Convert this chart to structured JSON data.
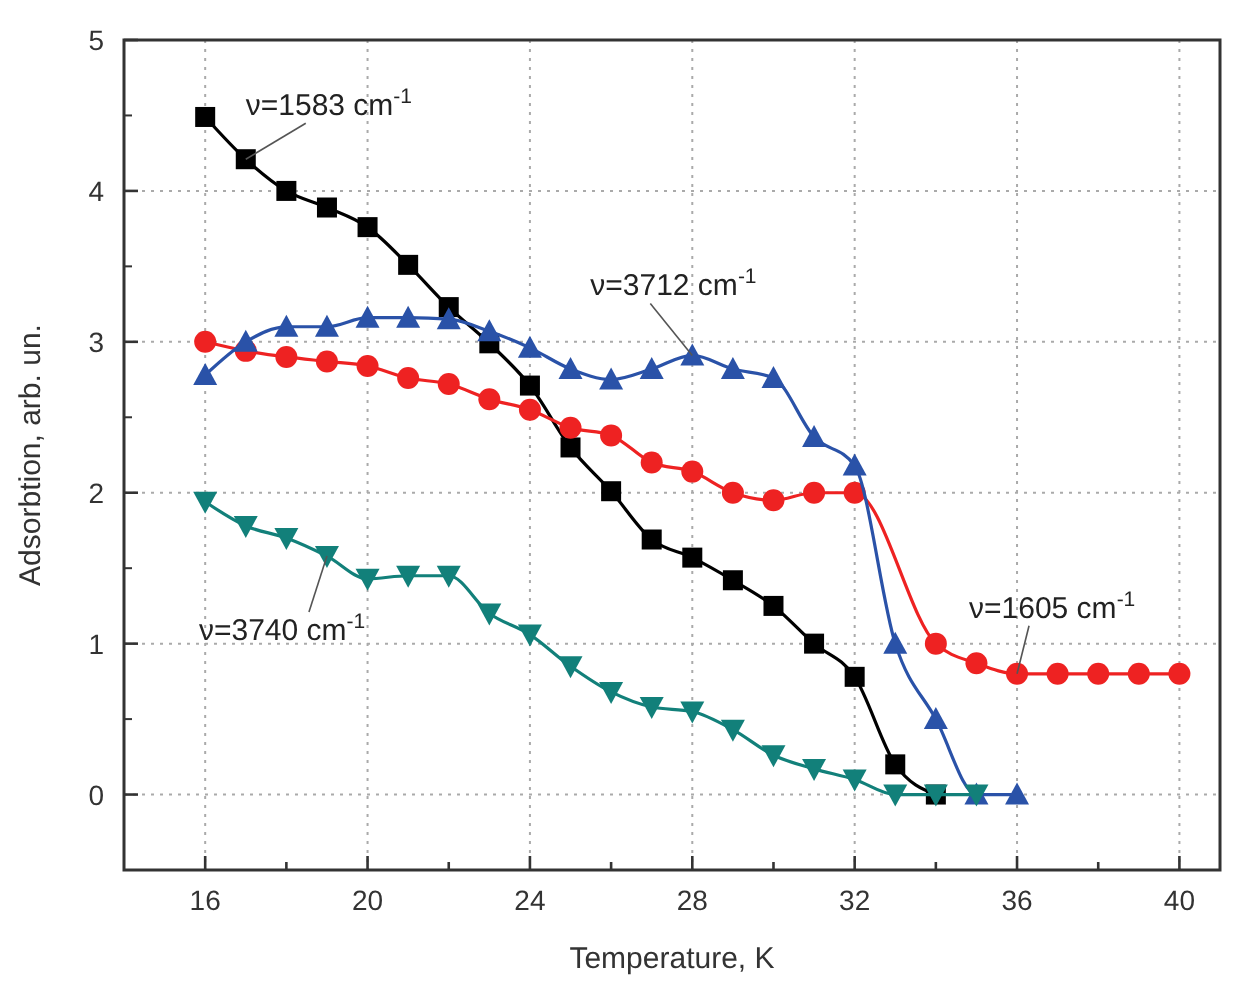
{
  "chart_data": {
    "type": "line",
    "xlabel": "Temperature, K",
    "ylabel": "Adsorbtion, arb. un.",
    "xlim": [
      14,
      41
    ],
    "ylim": [
      -0.5,
      5
    ],
    "xticks": [
      16,
      {
        "value": 18,
        "label": null
      },
      20,
      {
        "value": 22,
        "label": null
      },
      24,
      {
        "value": 26,
        "label": null
      },
      28,
      {
        "value": 30,
        "label": null
      },
      32,
      {
        "value": 34,
        "label": null
      },
      36,
      {
        "value": 38,
        "label": null
      },
      40
    ],
    "yticks": [
      0,
      1,
      2,
      3,
      4,
      5
    ],
    "grid": true,
    "series": [
      {
        "color": "#000000",
        "marker": "square",
        "x": [
          16,
          17,
          18,
          19,
          20,
          21,
          22,
          23,
          24,
          25,
          26,
          27,
          28,
          29,
          30,
          31,
          32,
          33,
          34
        ],
        "values": [
          4.49,
          4.21,
          4.0,
          3.89,
          3.76,
          3.51,
          3.23,
          2.99,
          2.71,
          2.3,
          2.01,
          1.69,
          1.57,
          1.42,
          1.25,
          1.0,
          0.78,
          0.2,
          0.0
        ]
      },
      {
        "color": "#ee2222",
        "marker": "circle",
        "x": [
          16,
          17,
          18,
          19,
          20,
          21,
          22,
          23,
          24,
          25,
          26,
          27,
          28,
          29,
          30,
          31,
          32,
          34,
          35,
          36,
          37,
          38,
          39,
          40
        ],
        "values": [
          3.0,
          2.94,
          2.9,
          2.87,
          2.84,
          2.76,
          2.72,
          2.62,
          2.55,
          2.43,
          2.38,
          2.2,
          2.14,
          2.0,
          1.95,
          2.0,
          2.0,
          1.0,
          0.87,
          0.8,
          0.8,
          0.8,
          0.8,
          0.8
        ]
      },
      {
        "color": "#2a52a8",
        "marker": "triangle",
        "x": [
          16,
          17,
          18,
          19,
          20,
          21,
          22,
          23,
          24,
          25,
          26,
          27,
          28,
          29,
          30,
          31,
          32,
          33,
          34,
          35,
          36
        ],
        "values": [
          2.78,
          3.0,
          3.1,
          3.1,
          3.16,
          3.16,
          3.15,
          3.07,
          2.96,
          2.82,
          2.75,
          2.82,
          2.91,
          2.82,
          2.76,
          2.37,
          2.18,
          1.0,
          0.5,
          0.0,
          0.0
        ]
      },
      {
        "color": "#12807a",
        "marker": "triangle-down",
        "x": [
          16,
          17,
          18,
          19,
          20,
          21,
          22,
          23,
          24,
          25,
          26,
          27,
          28,
          29,
          30,
          31,
          32,
          33,
          34,
          35
        ],
        "values": [
          1.94,
          1.78,
          1.7,
          1.58,
          1.43,
          1.45,
          1.45,
          1.2,
          1.06,
          0.85,
          0.68,
          0.58,
          0.55,
          0.43,
          0.26,
          0.17,
          0.1,
          0.0,
          0.0,
          0.0
        ]
      }
    ],
    "annotations": [
      {
        "text": "ν=1583 cm$^{-1}$",
        "x": 17,
        "y": 4.21
      },
      {
        "text": "ν=3712 cm$^{-1}$",
        "x": 28,
        "y": 2.91
      },
      {
        "text": "ν=1605 cm$^{-1}$",
        "x": 36,
        "y": 0.8
      },
      {
        "text": "ν=3740 cm$^{-1}$",
        "x": 19,
        "y": 1.58
      }
    ]
  }
}
